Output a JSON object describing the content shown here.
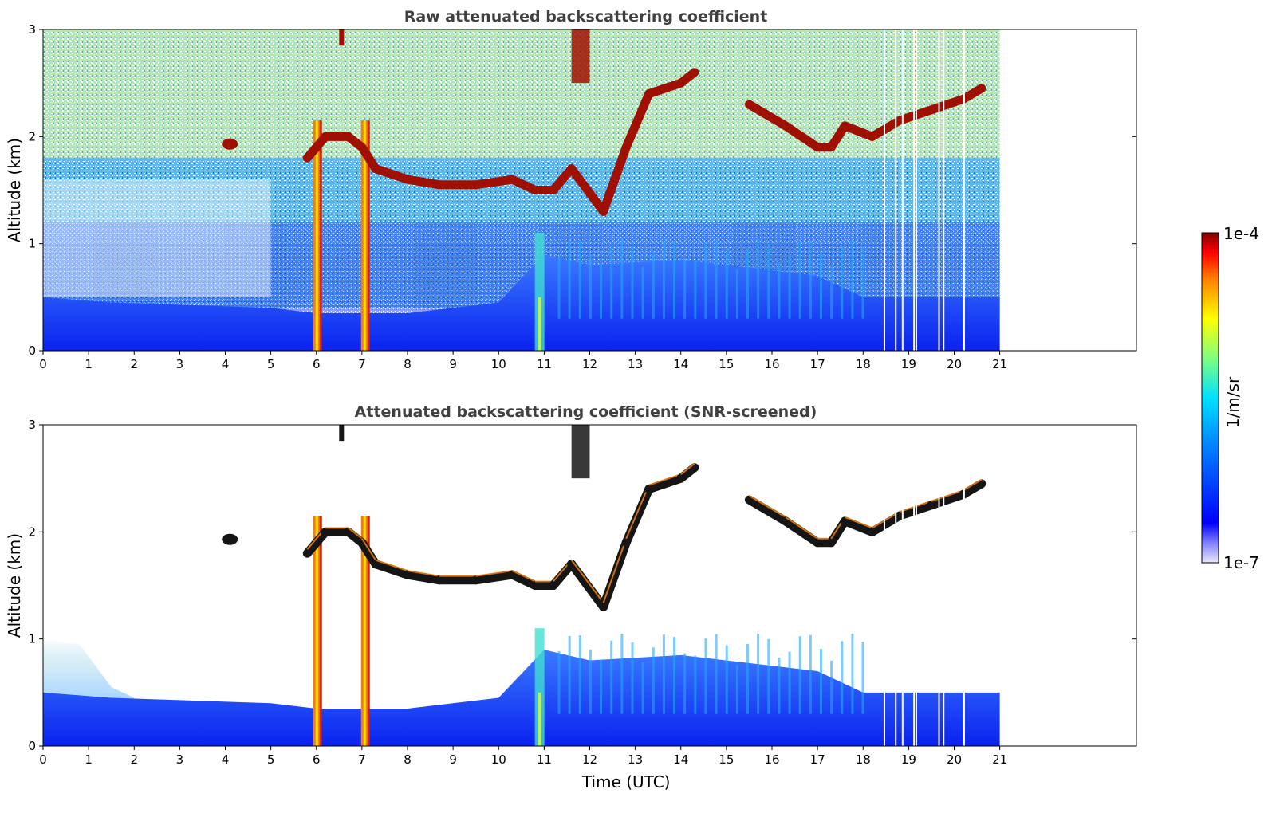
{
  "chart_data": [
    {
      "type": "heatmap",
      "title": "Raw attenuated backscattering coefficient",
      "ylabel": "Altitude (km)",
      "xlabel": "",
      "xlim": [
        0,
        24
      ],
      "ylim": [
        0,
        3
      ],
      "xticks": [
        "0",
        "1",
        "2",
        "3",
        "4",
        "5",
        "6",
        "7",
        "8",
        "9",
        "10",
        "11",
        "12",
        "13",
        "14",
        "15",
        "16",
        "17",
        "18",
        "19",
        "20",
        "21"
      ],
      "yticks": [
        "0",
        "1",
        "2",
        "3"
      ],
      "data_end_hour": 21,
      "features": {
        "boundary_layer_top_km": [
          [
            0,
            0.5
          ],
          [
            1.5,
            0.45
          ],
          [
            5,
            0.4
          ],
          [
            6,
            0.35
          ],
          [
            8,
            0.35
          ],
          [
            10,
            0.45
          ],
          [
            11,
            0.9
          ],
          [
            12,
            0.8
          ],
          [
            14,
            0.85
          ],
          [
            17,
            0.7
          ],
          [
            18,
            0.5
          ],
          [
            21,
            0.5
          ]
        ],
        "cloud_layer": [
          [
            5.8,
            1.8
          ],
          [
            6.2,
            2.0
          ],
          [
            6.7,
            2.0
          ],
          [
            7.0,
            1.9
          ],
          [
            7.3,
            1.7
          ],
          [
            8,
            1.6
          ],
          [
            8.7,
            1.55
          ],
          [
            9.5,
            1.55
          ],
          [
            10.3,
            1.6
          ],
          [
            10.8,
            1.5
          ],
          [
            11.2,
            1.5
          ],
          [
            11.6,
            1.7
          ],
          [
            12.3,
            1.3
          ],
          [
            12.8,
            1.9
          ],
          [
            13.3,
            2.4
          ],
          [
            14,
            2.5
          ],
          [
            14.3,
            2.6
          ],
          [
            15.5,
            2.3
          ],
          [
            16.3,
            2.1
          ],
          [
            17.0,
            1.9
          ],
          [
            17.3,
            1.9
          ],
          [
            17.6,
            2.1
          ],
          [
            18.2,
            2.0
          ],
          [
            18.8,
            2.15
          ],
          [
            19.5,
            2.25
          ],
          [
            20.2,
            2.35
          ],
          [
            20.6,
            2.45
          ]
        ],
        "precipitation_columns_hour": [
          6.0,
          7.05
        ],
        "aerosol_plume_hour": 10.9
      }
    },
    {
      "type": "heatmap",
      "title": "Attenuated backscattering coefficient (SNR-screened)",
      "ylabel": "Altitude (km)",
      "xlabel": "Time (UTC)",
      "xlim": [
        0,
        24
      ],
      "ylim": [
        0,
        3
      ],
      "xticks": [
        "0",
        "1",
        "2",
        "3",
        "4",
        "5",
        "6",
        "7",
        "8",
        "9",
        "10",
        "11",
        "12",
        "13",
        "14",
        "15",
        "16",
        "17",
        "18",
        "19",
        "20",
        "21"
      ],
      "yticks": [
        "0",
        "1",
        "2",
        "3"
      ],
      "data_end_hour": 21
    }
  ],
  "colorbar": {
    "label": "1/m/sr",
    "max_label": "1e-4",
    "min_label": "1e-7",
    "colormap": "jet",
    "scale": "log"
  }
}
